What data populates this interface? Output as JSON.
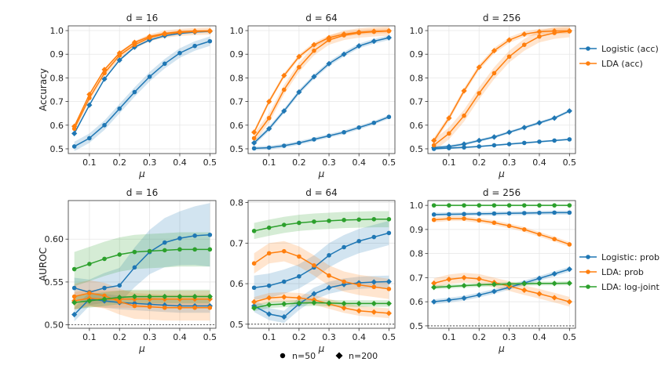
{
  "shared_legends": {
    "markers": [
      {
        "label": "n=50",
        "marker": "circle"
      },
      {
        "label": "n=200",
        "marker": "diamond"
      }
    ]
  },
  "colors": {
    "blue": "#1f77b4",
    "orange": "#ff7f0e",
    "green": "#2ca02c"
  },
  "chart_data": [
    {
      "type": "line",
      "row": 0,
      "col": 0,
      "title": "d = 16",
      "xlabel": "μ",
      "ylabel": "Accuracy",
      "xlim": [
        0.03,
        0.52
      ],
      "ylim": [
        0.48,
        1.02
      ],
      "xticks": [
        0.1,
        0.2,
        0.3,
        0.4,
        0.5
      ],
      "yticks": [
        0.5,
        0.6,
        0.7,
        0.8,
        0.9,
        1.0
      ],
      "ytick_labels": [
        "0.5",
        "0.6",
        "0.7",
        "0.8",
        "0.9",
        "1.0"
      ],
      "grid": true,
      "x": [
        0.05,
        0.1,
        0.15,
        0.2,
        0.25,
        0.3,
        0.35,
        0.4,
        0.45,
        0.5
      ],
      "series": [
        {
          "color": "blue",
          "marker": "circle",
          "band": 0.02,
          "values": [
            0.51,
            0.545,
            0.6,
            0.67,
            0.74,
            0.805,
            0.86,
            0.905,
            0.935,
            0.955
          ]
        },
        {
          "color": "blue",
          "marker": "diamond",
          "band": 0.005,
          "values": [
            0.565,
            0.685,
            0.795,
            0.875,
            0.93,
            0.96,
            0.978,
            0.988,
            0.994,
            0.997
          ]
        },
        {
          "color": "orange",
          "marker": "circle",
          "band": 0.015,
          "values": [
            0.585,
            0.715,
            0.82,
            0.895,
            0.94,
            0.97,
            0.985,
            0.992,
            0.996,
            0.998
          ]
        },
        {
          "color": "orange",
          "marker": "diamond",
          "band": 0.005,
          "values": [
            0.595,
            0.73,
            0.835,
            0.905,
            0.95,
            0.975,
            0.988,
            0.995,
            0.998,
            0.999
          ]
        }
      ]
    },
    {
      "type": "line",
      "row": 0,
      "col": 1,
      "title": "d = 64",
      "xlabel": "μ",
      "ylabel": "",
      "xlim": [
        0.03,
        0.52
      ],
      "ylim": [
        0.48,
        1.02
      ],
      "xticks": [
        0.1,
        0.2,
        0.3,
        0.4,
        0.5
      ],
      "yticks": [
        0.5,
        0.6,
        0.7,
        0.8,
        0.9,
        1.0
      ],
      "ytick_labels": [
        "0.5",
        "0.6",
        "0.7",
        "0.8",
        "0.9",
        "1.0"
      ],
      "grid": true,
      "x": [
        0.05,
        0.1,
        0.15,
        0.2,
        0.25,
        0.3,
        0.35,
        0.4,
        0.45,
        0.5
      ],
      "series": [
        {
          "color": "blue",
          "marker": "circle",
          "band": 0.008,
          "values": [
            0.502,
            0.505,
            0.513,
            0.525,
            0.54,
            0.555,
            0.57,
            0.59,
            0.61,
            0.635
          ]
        },
        {
          "color": "blue",
          "marker": "diamond",
          "band": 0.01,
          "values": [
            0.525,
            0.585,
            0.66,
            0.74,
            0.805,
            0.86,
            0.9,
            0.935,
            0.955,
            0.97
          ]
        },
        {
          "color": "orange",
          "marker": "circle",
          "band": 0.02,
          "values": [
            0.545,
            0.63,
            0.75,
            0.845,
            0.915,
            0.96,
            0.98,
            0.99,
            0.995,
            0.998
          ]
        },
        {
          "color": "orange",
          "marker": "diamond",
          "band": 0.01,
          "values": [
            0.57,
            0.7,
            0.81,
            0.89,
            0.94,
            0.97,
            0.985,
            0.993,
            0.997,
            0.999
          ]
        }
      ]
    },
    {
      "type": "line",
      "row": 0,
      "col": 2,
      "title": "d = 256",
      "xlabel": "μ",
      "ylabel": "",
      "xlim": [
        0.03,
        0.52
      ],
      "ylim": [
        0.48,
        1.02
      ],
      "xticks": [
        0.1,
        0.2,
        0.3,
        0.4,
        0.5
      ],
      "yticks": [
        0.5,
        0.6,
        0.7,
        0.8,
        0.9,
        1.0
      ],
      "ytick_labels": [
        "0.5",
        "0.6",
        "0.7",
        "0.8",
        "0.9",
        "1.0"
      ],
      "grid": true,
      "x": [
        0.05,
        0.1,
        0.15,
        0.2,
        0.25,
        0.3,
        0.35,
        0.4,
        0.45,
        0.5
      ],
      "series": [
        {
          "color": "blue",
          "marker": "circle",
          "band": 0.004,
          "values": [
            0.5,
            0.503,
            0.506,
            0.51,
            0.515,
            0.52,
            0.525,
            0.53,
            0.535,
            0.54
          ]
        },
        {
          "color": "blue",
          "marker": "diamond",
          "band": 0.006,
          "values": [
            0.505,
            0.51,
            0.52,
            0.535,
            0.55,
            0.57,
            0.59,
            0.61,
            0.63,
            0.66
          ]
        },
        {
          "color": "orange",
          "marker": "circle",
          "band": 0.025,
          "values": [
            0.515,
            0.565,
            0.64,
            0.735,
            0.82,
            0.89,
            0.94,
            0.975,
            0.99,
            0.997
          ]
        },
        {
          "color": "orange",
          "marker": "diamond",
          "band": 0.012,
          "values": [
            0.535,
            0.63,
            0.745,
            0.845,
            0.915,
            0.96,
            0.985,
            0.995,
            0.998,
            0.999
          ]
        }
      ]
    },
    {
      "type": "line",
      "row": 1,
      "col": 0,
      "title": "d = 16",
      "xlabel": "μ",
      "ylabel": "AUROC",
      "xlim": [
        0.03,
        0.52
      ],
      "ylim": [
        0.496,
        0.645
      ],
      "xticks": [
        0.1,
        0.2,
        0.3,
        0.4,
        0.5
      ],
      "yticks": [
        0.5,
        0.55,
        0.6
      ],
      "ytick_labels": [
        "0.50",
        "0.55",
        "0.60"
      ],
      "grid": true,
      "ref_line": 0.5,
      "x": [
        0.05,
        0.1,
        0.15,
        0.2,
        0.25,
        0.3,
        0.35,
        0.4,
        0.45,
        0.5
      ],
      "series": [
        {
          "color": "blue",
          "marker": "circle",
          "band": 0.012,
          "band_grow": 0.025,
          "values": [
            0.543,
            0.538,
            0.543,
            0.546,
            0.567,
            0.585,
            0.596,
            0.601,
            0.604,
            0.605
          ]
        },
        {
          "color": "blue",
          "marker": "diamond",
          "band": 0.008,
          "values": [
            0.512,
            0.53,
            0.528,
            0.526,
            0.525,
            0.524,
            0.523,
            0.522,
            0.522,
            0.522
          ]
        },
        {
          "color": "orange",
          "marker": "circle",
          "band": 0.015,
          "values": [
            0.533,
            0.537,
            0.534,
            0.527,
            0.522,
            0.521,
            0.52,
            0.52,
            0.52,
            0.52
          ]
        },
        {
          "color": "orange",
          "marker": "diamond",
          "band": 0.01,
          "values": [
            0.528,
            0.531,
            0.53,
            0.53,
            0.53,
            0.53,
            0.53,
            0.53,
            0.53,
            0.53
          ]
        },
        {
          "color": "green",
          "marker": "circle",
          "band": 0.02,
          "values": [
            0.565,
            0.571,
            0.577,
            0.582,
            0.585,
            0.586,
            0.587,
            0.588,
            0.588,
            0.588
          ]
        },
        {
          "color": "green",
          "marker": "diamond",
          "band": 0.008,
          "values": [
            0.526,
            0.528,
            0.53,
            0.532,
            0.533,
            0.533,
            0.533,
            0.533,
            0.533,
            0.533
          ]
        }
      ]
    },
    {
      "type": "line",
      "row": 1,
      "col": 1,
      "title": "d = 64",
      "xlabel": "μ",
      "ylabel": "",
      "xlim": [
        0.03,
        0.52
      ],
      "ylim": [
        0.49,
        0.805
      ],
      "xticks": [
        0.1,
        0.2,
        0.3,
        0.4,
        0.5
      ],
      "yticks": [
        0.5,
        0.6,
        0.7,
        0.8
      ],
      "ytick_labels": [
        "0.5",
        "0.6",
        "0.7",
        "0.8"
      ],
      "grid": true,
      "ref_line": 0.5,
      "x": [
        0.05,
        0.1,
        0.15,
        0.2,
        0.25,
        0.3,
        0.35,
        0.4,
        0.45,
        0.5
      ],
      "series": [
        {
          "color": "blue",
          "marker": "circle",
          "band": 0.03,
          "values": [
            0.59,
            0.595,
            0.605,
            0.618,
            0.64,
            0.67,
            0.69,
            0.705,
            0.715,
            0.725
          ]
        },
        {
          "color": "blue",
          "marker": "diamond",
          "band": 0.015,
          "values": [
            0.545,
            0.525,
            0.518,
            0.55,
            0.575,
            0.59,
            0.598,
            0.602,
            0.604,
            0.605
          ]
        },
        {
          "color": "orange",
          "marker": "circle",
          "band": 0.025,
          "values": [
            0.65,
            0.675,
            0.68,
            0.667,
            0.645,
            0.62,
            0.605,
            0.597,
            0.592,
            0.587
          ]
        },
        {
          "color": "orange",
          "marker": "diamond",
          "band": 0.012,
          "values": [
            0.555,
            0.565,
            0.567,
            0.565,
            0.56,
            0.55,
            0.54,
            0.533,
            0.53,
            0.527
          ]
        },
        {
          "color": "green",
          "marker": "circle",
          "band": 0.02,
          "values": [
            0.73,
            0.738,
            0.745,
            0.75,
            0.753,
            0.755,
            0.757,
            0.758,
            0.759,
            0.759
          ]
        },
        {
          "color": "green",
          "marker": "diamond",
          "band": 0.008,
          "values": [
            0.54,
            0.548,
            0.55,
            0.552,
            0.553,
            0.552,
            0.551,
            0.551,
            0.551,
            0.551
          ]
        }
      ]
    },
    {
      "type": "line",
      "row": 1,
      "col": 2,
      "title": "d = 256",
      "xlabel": "μ",
      "ylabel": "",
      "xlim": [
        0.03,
        0.52
      ],
      "ylim": [
        0.49,
        1.02
      ],
      "xticks": [
        0.1,
        0.2,
        0.3,
        0.4,
        0.5
      ],
      "yticks": [
        0.5,
        0.6,
        0.7,
        0.8,
        0.9,
        1.0
      ],
      "ytick_labels": [
        "0.5",
        "0.6",
        "0.7",
        "0.8",
        "0.9",
        "1.0"
      ],
      "grid": true,
      "ref_line": 0.5,
      "x": [
        0.05,
        0.1,
        0.15,
        0.2,
        0.25,
        0.3,
        0.35,
        0.4,
        0.45,
        0.5
      ],
      "series": [
        {
          "color": "blue",
          "marker": "circle",
          "band": 0.008,
          "values": [
            0.962,
            0.963,
            0.964,
            0.965,
            0.966,
            0.967,
            0.968,
            0.969,
            0.97,
            0.97
          ]
        },
        {
          "color": "blue",
          "marker": "diamond",
          "band": 0.01,
          "values": [
            0.6,
            0.607,
            0.615,
            0.628,
            0.643,
            0.66,
            0.678,
            0.697,
            0.716,
            0.735
          ]
        },
        {
          "color": "orange",
          "marker": "circle",
          "band": 0.01,
          "values": [
            0.94,
            0.945,
            0.945,
            0.938,
            0.928,
            0.915,
            0.9,
            0.88,
            0.86,
            0.838
          ]
        },
        {
          "color": "orange",
          "marker": "diamond",
          "band": 0.02,
          "values": [
            0.677,
            0.693,
            0.7,
            0.695,
            0.68,
            0.665,
            0.648,
            0.633,
            0.617,
            0.6
          ]
        },
        {
          "color": "green",
          "marker": "circle",
          "band": 0.003,
          "values": [
            1.0,
            1.0,
            1.0,
            1.0,
            1.0,
            1.0,
            1.0,
            1.0,
            1.0,
            1.0
          ]
        },
        {
          "color": "green",
          "marker": "diamond",
          "band": 0.008,
          "values": [
            0.66,
            0.663,
            0.667,
            0.67,
            0.672,
            0.674,
            0.675,
            0.676,
            0.676,
            0.677
          ]
        }
      ]
    }
  ],
  "legends": [
    {
      "row": 0,
      "entries": [
        {
          "label": "Logistic (acc)",
          "color": "blue"
        },
        {
          "label": "LDA (acc)",
          "color": "orange"
        }
      ]
    },
    {
      "row": 1,
      "entries": [
        {
          "label": "Logistic: prob",
          "color": "blue"
        },
        {
          "label": "LDA: prob",
          "color": "orange"
        },
        {
          "label": "LDA: log-joint",
          "color": "green"
        }
      ]
    }
  ]
}
